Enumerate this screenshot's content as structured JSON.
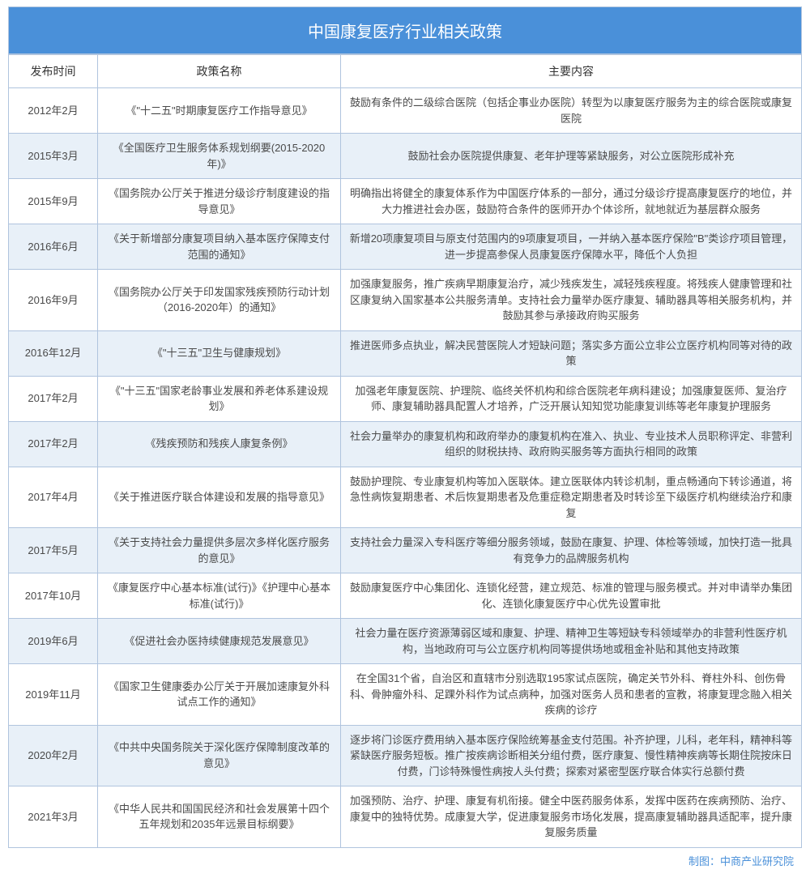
{
  "title": "中国康复医疗行业相关政策",
  "columns": [
    "发布时间",
    "政策名称",
    "主要内容"
  ],
  "footer": "制图：中商产业研究院",
  "rows": [
    {
      "date": "2012年2月",
      "name": "《\"十二五\"时期康复医疗工作指导意见》",
      "content": "鼓励有条件的二级综合医院（包括企事业办医院）转型为以康复医疗服务为主的综合医院或康复医院"
    },
    {
      "date": "2015年3月",
      "name": "《全国医疗卫生服务体系规划纲要(2015-2020年)》",
      "content": "鼓励社会办医院提供康复、老年护理等紧缺服务，对公立医院形成补充"
    },
    {
      "date": "2015年9月",
      "name": "《国务院办公厅关于推进分级诊疗制度建设的指导意见》",
      "content": "明确指出将健全的康复体系作为中国医疗体系的一部分，通过分级诊疗提高康复医疗的地位，并大力推进社会办医，鼓励符合条件的医师开办个体诊所，就地就近为基层群众服务"
    },
    {
      "date": "2016年6月",
      "name": "《关于新增部分康复项目纳入基本医疗保障支付范围的通知》",
      "content": "新增20项康复项目与原支付范围内的9项康复项目，一并纳入基本医疗保险\"B\"类诊疗项目管理，进一步提高参保人员康复医疗保障水平，降低个人负担"
    },
    {
      "date": "2016年9月",
      "name": "《国务院办公厅关于印发国家残疾预防行动计划（2016-2020年）的通知》",
      "content": "加强康复服务，推广疾病早期康复治疗，减少残疾发生，减轻残疾程度。将残疾人健康管理和社区康复纳入国家基本公共服务清单。支持社会力量举办医疗康复、辅助器具等相关服务机构，并鼓励其参与承接政府购买服务"
    },
    {
      "date": "2016年12月",
      "name": "《\"十三五\"卫生与健康规划》",
      "content": "推进医师多点执业，解决民营医院人才短缺问题；落实多方面公立非公立医疗机构同等对待的政策"
    },
    {
      "date": "2017年2月",
      "name": "《\"十三五\"国家老龄事业发展和养老体系建设规划》",
      "content": "加强老年康复医院、护理院、临终关怀机构和综合医院老年病科建设；加强康复医师、复治疗师、康复辅助器具配置人才培养，广泛开展认知知觉功能康复训练等老年康复护理服务"
    },
    {
      "date": "2017年2月",
      "name": "《残疾预防和残疾人康复条例》",
      "content": "社会力量举办的康复机构和政府举办的康复机构在准入、执业、专业技术人员职称评定、非营利组织的财税扶持、政府购买服务等方面执行相同的政策"
    },
    {
      "date": "2017年4月",
      "name": "《关于推进医疗联合体建设和发展的指导意见》",
      "content": "鼓励护理院、专业康复机构等加入医联体。建立医联体内转诊机制，重点畅通向下转诊通道，将急性病恢复期患者、术后恢复期患者及危重症稳定期患者及时转诊至下级医疗机构继续治疗和康复"
    },
    {
      "date": "2017年5月",
      "name": "《关于支持社会力量提供多层次多样化医疗服务的意见》",
      "content": "支持社会力量深入专科医疗等细分服务领域，鼓励在康复、护理、体检等领域，加快打造一批具有竞争力的品牌服务机构"
    },
    {
      "date": "2017年10月",
      "name": "《康复医疗中心基本标准(试行)》《护理中心基本标准(试行)》",
      "content": "鼓励康复医疗中心集团化、连锁化经营，建立规范、标准的管理与服务模式。并对申请举办集团化、连锁化康复医疗中心优先设置审批"
    },
    {
      "date": "2019年6月",
      "name": "《促进社会办医持续健康规范发展意见》",
      "content": "社会力量在医疗资源薄弱区域和康复、护理、精神卫生等短缺专科领域举办的非营利性医疗机构，当地政府可与公立医疗机构同等提供场地或租金补贴和其他支持政策"
    },
    {
      "date": "2019年11月",
      "name": "《国家卫生健康委办公厅关于开展加速康复外科试点工作的通知》",
      "content": "在全国31个省，自治区和直辖市分别选取195家试点医院，确定关节外科、脊柱外科、创伤骨科、骨肿瘤外科、足踝外科作为试点病种，加强对医务人员和患者的宣教，将康复理念融入相关疾病的诊疗"
    },
    {
      "date": "2020年2月",
      "name": "《中共中央国务院关于深化医疗保障制度改革的意见》",
      "content": "逐步将门诊医疗费用纳入基本医疗保险统筹基金支付范围。补齐护理，儿科，老年科，精神科等紧缺医疗服务短板。推广按疾病诊断相关分组付费，医疗康复、慢性精神疾病等长期住院按床日付费，门诊特殊慢性病按人头付费；探索对紧密型医疗联合体实行总额付费"
    },
    {
      "date": "2021年3月",
      "name": "《中华人民共和国国民经济和社会发展第十四个五年规划和2035年远景目标纲要》",
      "content": "加强预防、治疗、护理、康复有机衔接。健全中医药服务体系，发挥中医药在疾病预防、治疗、康复中的独特优势。成康复大学，促进康复服务市场化发展，提高康复辅助器具适配率，提升康复服务质量"
    }
  ]
}
